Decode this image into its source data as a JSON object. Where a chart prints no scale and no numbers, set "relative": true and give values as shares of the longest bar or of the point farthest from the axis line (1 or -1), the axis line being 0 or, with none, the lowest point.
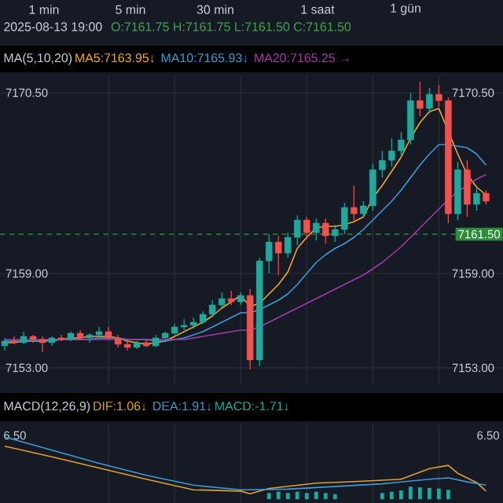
{
  "chart_data": [
    {
      "type": "candlestick",
      "title": "2025-08-13 19:00",
      "subtitle": "O:7161.75 H:7161.75 L:7161.50 C:7161.50",
      "annotations": [
        "1 min",
        "5 min",
        "30 min",
        "1 saat",
        "1 gün",
        "MA(5,10,20)"
      ],
      "categories": [
        null,
        null,
        null,
        null,
        null,
        null,
        null,
        null,
        null,
        null,
        null,
        null,
        null,
        null,
        null,
        null,
        null,
        null,
        null,
        null,
        null,
        null,
        null,
        null,
        null,
        null,
        null,
        null,
        null,
        null,
        null,
        null,
        null,
        null,
        null,
        null,
        null,
        null,
        null,
        null,
        null,
        null,
        null,
        null,
        null,
        null,
        null,
        null,
        null,
        null,
        null,
        null
      ],
      "ohlc": [
        [
          7154.4,
          7154.9,
          7154.1,
          7154.7
        ],
        [
          7154.7,
          7155.0,
          7154.5,
          7154.6
        ],
        [
          7154.6,
          7155.3,
          7154.5,
          7155.0
        ],
        [
          7155.0,
          7155.1,
          7154.6,
          7154.8
        ],
        [
          7154.8,
          7155.0,
          7154.0,
          7154.6
        ],
        [
          7154.6,
          7155.0,
          7154.4,
          7154.9
        ],
        [
          7154.9,
          7155.1,
          7154.7,
          7154.8
        ],
        [
          7154.8,
          7155.3,
          7154.7,
          7155.2
        ],
        [
          7155.2,
          7155.4,
          7154.8,
          7154.9
        ],
        [
          7154.9,
          7155.2,
          7154.6,
          7155.1
        ],
        [
          7155.1,
          7155.6,
          7154.9,
          7155.3
        ],
        [
          7155.3,
          7155.6,
          7154.8,
          7154.9
        ],
        [
          7154.9,
          7155.1,
          7154.3,
          7154.5
        ],
        [
          7154.5,
          7154.7,
          7154.1,
          7154.3
        ],
        [
          7154.3,
          7154.7,
          7154.2,
          7154.6
        ],
        [
          7154.6,
          7154.8,
          7154.3,
          7154.4
        ],
        [
          7154.4,
          7155.1,
          7154.3,
          7154.9
        ],
        [
          7154.9,
          7155.3,
          7154.8,
          7155.2
        ],
        [
          7155.2,
          7155.8,
          7155.1,
          7155.6
        ],
        [
          7155.6,
          7156.1,
          7155.4,
          7155.7
        ],
        [
          7155.7,
          7156.2,
          7155.5,
          7155.9
        ],
        [
          7155.9,
          7156.6,
          7155.8,
          7156.4
        ],
        [
          7156.4,
          7157.3,
          7156.2,
          7157.0
        ],
        [
          7157.0,
          7157.8,
          7156.8,
          7157.4
        ],
        [
          7157.4,
          7157.9,
          7157.0,
          7157.2
        ],
        [
          7157.2,
          7157.8,
          7157.0,
          7157.6
        ],
        [
          7157.6,
          7158.0,
          7152.9,
          7153.5
        ],
        [
          7153.5,
          7160.0,
          7153.1,
          7159.8
        ],
        [
          7159.8,
          7161.5,
          7159.0,
          7161.0
        ],
        [
          7161.0,
          7161.4,
          7158.9,
          7160.3
        ],
        [
          7160.3,
          7161.6,
          7160.0,
          7161.3
        ],
        [
          7161.3,
          7162.7,
          7160.8,
          7162.4
        ],
        [
          7162.4,
          7162.6,
          7161.2,
          7161.6
        ],
        [
          7161.6,
          7162.5,
          7161.1,
          7162.2
        ],
        [
          7162.2,
          7162.5,
          7160.9,
          7161.4
        ],
        [
          7161.4,
          7162.1,
          7161.0,
          7161.8
        ],
        [
          7161.8,
          7163.5,
          7161.5,
          7163.2
        ],
        [
          7163.2,
          7164.6,
          7162.4,
          7162.8
        ],
        [
          7162.8,
          7163.6,
          7162.6,
          7163.3
        ],
        [
          7163.3,
          7166.0,
          7163.0,
          7165.6
        ],
        [
          7165.6,
          7166.8,
          7165.1,
          7166.2
        ],
        [
          7166.2,
          7167.6,
          7165.8,
          7166.8
        ],
        [
          7166.8,
          7168.0,
          7166.5,
          7167.5
        ],
        [
          7167.5,
          7170.5,
          7167.2,
          7170.0
        ],
        [
          7170.0,
          7171.2,
          7169.0,
          7169.5
        ],
        [
          7169.5,
          7170.8,
          7169.2,
          7170.4
        ],
        [
          7170.4,
          7171.0,
          7169.6,
          7170.0
        ],
        [
          7170.0,
          7170.2,
          7162.2,
          7162.8
        ],
        [
          7162.8,
          7166.1,
          7162.4,
          7165.6
        ],
        [
          7165.6,
          7166.2,
          7162.6,
          7163.4
        ],
        [
          7163.4,
          7164.4,
          7163.0,
          7164.1
        ],
        [
          7164.1,
          7164.3,
          7163.4,
          7163.6
        ]
      ],
      "series": [
        {
          "type": "line",
          "name": "MA5:7163.95↓",
          "color": "#f0a830",
          "values": [
            7154.6,
            7154.6,
            7154.7,
            7154.7,
            7154.7,
            7154.8,
            7154.8,
            7154.9,
            7154.9,
            7155.0,
            7155.0,
            7155.0,
            7154.9,
            7154.7,
            7154.6,
            7154.5,
            7154.6,
            7154.7,
            7155.0,
            7155.3,
            7155.6,
            7155.9,
            7156.3,
            7156.8,
            7157.2,
            7157.6,
            7156.9,
            7157.1,
            7157.7,
            7158.3,
            7159.1,
            7160.6,
            7161.3,
            7161.9,
            7162.0,
            7162.0,
            7162.1,
            7162.3,
            7162.6,
            7163.8,
            7164.6,
            7165.5,
            7166.4,
            7167.6,
            7168.6,
            7169.3,
            7169.5,
            null,
            7166.6,
            7165.3,
            7164.5,
            7164.0
          ]
        },
        {
          "type": "line",
          "name": "MA10:7165.93↓",
          "color": "#3d9bd6",
          "values": [
            7154.7,
            7154.7,
            7154.7,
            7154.7,
            7154.7,
            7154.7,
            7154.8,
            7154.8,
            7154.8,
            7154.8,
            7154.9,
            7154.9,
            7154.9,
            7154.8,
            7154.8,
            7154.8,
            7154.7,
            7154.7,
            7154.8,
            7154.9,
            7155.1,
            7155.3,
            7155.6,
            7155.9,
            7156.2,
            7156.5,
            7156.5,
            7156.7,
            7157.0,
            7157.3,
            7157.7,
            7158.3,
            7159.0,
            7159.7,
            7160.2,
            7160.6,
            7160.9,
            7161.3,
            7161.8,
            7162.4,
            7163.0,
            7163.6,
            7164.3,
            7165.1,
            7165.9,
            7166.6,
            7167.2,
            7167.2,
            7167.1,
            7167.0,
            7166.6,
            7165.9
          ]
        },
        {
          "type": "line",
          "name": "MA20:7165.25 →",
          "color": "#a23aa8",
          "values": [
            7154.8,
            7154.8,
            7154.8,
            7154.8,
            7154.8,
            7154.8,
            7154.8,
            7154.8,
            7154.8,
            7154.8,
            7154.8,
            7154.8,
            7154.8,
            7154.8,
            7154.8,
            7154.8,
            7154.8,
            7154.8,
            7154.8,
            7154.8,
            7154.9,
            7155.0,
            7155.1,
            7155.2,
            7155.3,
            7155.4,
            7155.4,
            7155.6,
            7155.9,
            7156.2,
            7156.5,
            7156.8,
            7157.1,
            7157.4,
            7157.7,
            7158.0,
            7158.3,
            7158.6,
            7158.9,
            7159.3,
            7159.7,
            7160.2,
            7160.7,
            7161.3,
            7161.9,
            7162.5,
            7163.1,
            7163.7,
            7164.2,
            7164.6,
            7165.0,
            7165.3
          ]
        }
      ],
      "ylim": [
        7151.9,
        7171.6
      ],
      "yticks": [
        {
          "value": 7153,
          "label": "7153.00"
        },
        {
          "value": 7159,
          "label": "7159.00"
        },
        {
          "value": 7170.5,
          "label": "7170.50"
        }
      ],
      "y2lim": [
        7151.9,
        7171.6
      ],
      "y2ticks": [
        {
          "value": 7153,
          "label": "7153.00"
        },
        {
          "value": 7159,
          "label": "7159.00"
        },
        {
          "value": 7170.5,
          "label": "7170.50"
        }
      ],
      "ref_lines": [
        {
          "axis": "y",
          "value": 7161.5,
          "label": "7161.50",
          "color": "#2e8b3a",
          "line_style": "dashed"
        }
      ],
      "grid": true,
      "legend": "top",
      "tick_labels": "y"
    },
    {
      "type": "line",
      "title": "MACD(12,26,9)",
      "relative": true,
      "annotations": [
        "6.50",
        "6.50"
      ],
      "categories": [
        null,
        null,
        null,
        null,
        null,
        null,
        null,
        null,
        null,
        null,
        null,
        null,
        null,
        null,
        null,
        null,
        null,
        null,
        null,
        null,
        null,
        null,
        null,
        null,
        null,
        null,
        null,
        null,
        null,
        null,
        null,
        null,
        null,
        null,
        null,
        null,
        null,
        null,
        null,
        null,
        null,
        null,
        null,
        null,
        null,
        null,
        null,
        null,
        null,
        null,
        null,
        null
      ],
      "series": [
        {
          "type": "line",
          "name": "DIF:1.06↓",
          "color": "#e0a030",
          "values": [
            0.86,
            null,
            null,
            null,
            null,
            0.7,
            null,
            null,
            null,
            null,
            0.53,
            null,
            null,
            null,
            null,
            0.36,
            null,
            null,
            null,
            null,
            0.2,
            null,
            null,
            null,
            null,
            0.18,
            0.14,
            null,
            0.22,
            null,
            null,
            null,
            null,
            0.3,
            null,
            null,
            null,
            null,
            0.33,
            null,
            null,
            null,
            0.36,
            null,
            null,
            0.52,
            null,
            0.57,
            0.45,
            null,
            0.31,
            0.18
          ]
        },
        {
          "type": "line",
          "name": "DEA:1.91↓",
          "color": "#3d9bd6",
          "values": [
            1.0,
            null,
            null,
            null,
            null,
            0.8,
            null,
            null,
            null,
            null,
            0.6,
            null,
            null,
            null,
            null,
            0.42,
            null,
            null,
            null,
            null,
            0.27,
            null,
            null,
            null,
            null,
            0.2,
            null,
            null,
            null,
            null,
            0.21,
            null,
            null,
            null,
            null,
            0.25,
            null,
            null,
            null,
            null,
            0.29,
            null,
            null,
            null,
            null,
            0.36,
            null,
            0.38,
            null,
            0.32,
            null,
            0.27
          ]
        }
      ],
      "grid": "x",
      "tick_labels": false
    },
    {
      "type": "bar",
      "relative": true,
      "categories": [
        null,
        null,
        null,
        null,
        null,
        null,
        null,
        null
      ],
      "series": [
        {
          "name": "MACD:-1.71↓",
          "color": "#26a69a",
          "values": [
            0.83,
            1,
            0.83,
            1,
            0.83,
            1,
            0.83,
            0.67
          ]
        }
      ],
      "tick_labels": false
    },
    {
      "type": "bar",
      "relative": true,
      "categories": [
        null,
        null,
        null,
        null,
        null,
        null,
        null,
        null
      ],
      "series": [
        {
          "color": "#26a69a",
          "values": [
            0.5,
            0.6,
            0.7,
            1,
            0.95,
            0.9,
            0.85,
            0.75
          ]
        }
      ],
      "tick_labels": false
    }
  ]
}
